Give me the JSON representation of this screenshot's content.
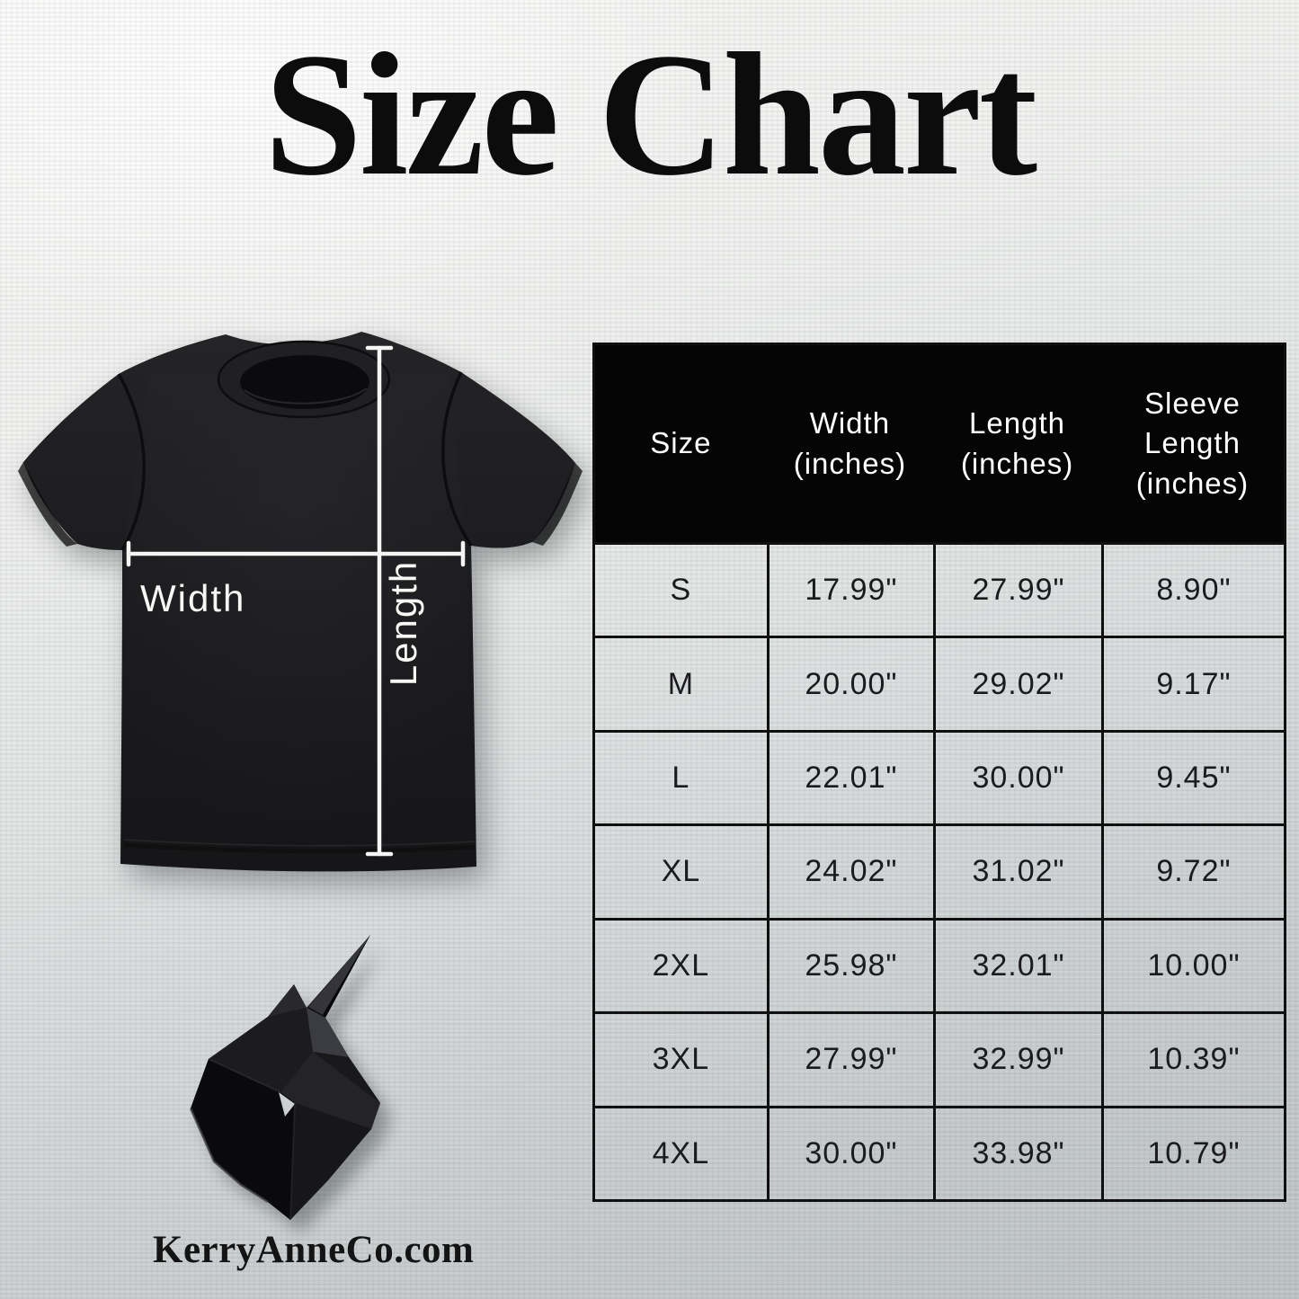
{
  "title": "Size Chart",
  "brand": {
    "website": "KerryAnneCo.com"
  },
  "diagram": {
    "width_label": "Width",
    "length_label": "Length",
    "garment": "black short-sleeve crew-neck t-shirt"
  },
  "table": {
    "columns": [
      "Size",
      "Width\n(inches)",
      "Length\n(inches)",
      "Sleeve\nLength\n(inches)"
    ],
    "rows": [
      [
        "S",
        "17.99\"",
        "27.99\"",
        "8.90\""
      ],
      [
        "M",
        "20.00\"",
        "29.02\"",
        "9.17\""
      ],
      [
        "L",
        "22.01\"",
        "30.00\"",
        "9.45\""
      ],
      [
        "XL",
        "24.02\"",
        "31.02\"",
        "9.72\""
      ],
      [
        "2XL",
        "25.98\"",
        "32.01\"",
        "10.00\""
      ],
      [
        "3XL",
        "27.99\"",
        "32.99\"",
        "10.39\""
      ],
      [
        "4XL",
        "30.00\"",
        "33.98\"",
        "10.79\""
      ]
    ]
  },
  "chart_data": {
    "type": "table",
    "title": "Size Chart",
    "columns": [
      "Size",
      "Width (inches)",
      "Length (inches)",
      "Sleeve Length (inches)"
    ],
    "rows": [
      [
        "S",
        17.99,
        27.99,
        8.9
      ],
      [
        "M",
        20.0,
        29.02,
        9.17
      ],
      [
        "L",
        22.01,
        30.0,
        9.45
      ],
      [
        "XL",
        24.02,
        31.02,
        9.72
      ],
      [
        "2XL",
        25.98,
        32.01,
        10.0
      ],
      [
        "3XL",
        27.99,
        32.99,
        10.39
      ],
      [
        "4XL",
        30.0,
        33.98,
        10.79
      ]
    ],
    "units": "inches"
  },
  "colors": {
    "header_bg": "#050505",
    "header_text": "#ffffff",
    "cell_text": "#1b1b1d",
    "table_border": "#101010",
    "annotation_lines": "#f5f5f3",
    "title_text": "#0c0c0c",
    "shirt": "#1c1c1f",
    "background_top": "#f7f7f5",
    "background_bottom": "#bfc4c6"
  }
}
